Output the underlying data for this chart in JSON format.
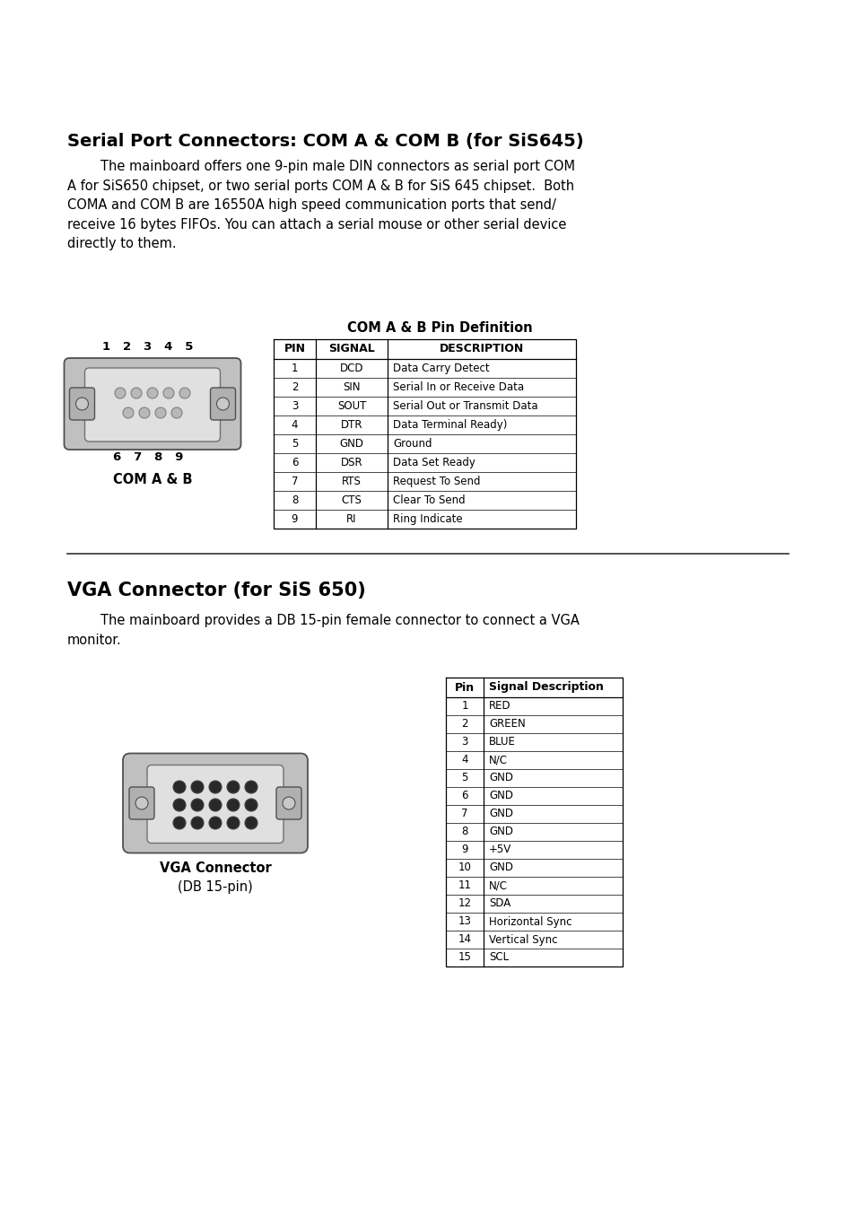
{
  "title1": "Serial Port Connectors: COM A & COM B (for SiS645)",
  "para1": "        The mainboard offers one 9-pin male DIN connectors as serial port COM\nA for SiS650 chipset, or two serial ports COM A & B for SiS 645 chipset.  Both\nCOMA and COM B are 16550A high speed communication ports that send/\nreceive 16 bytes FIFOs. You can attach a serial mouse or other serial device\ndirectly to them.",
  "com_table_title": "COM A & B Pin Definition",
  "com_table_headers": [
    "PIN",
    "SIGNAL",
    "DESCRIPTION"
  ],
  "com_table_rows": [
    [
      "1",
      "DCD",
      "Data Carry Detect"
    ],
    [
      "2",
      "SIN",
      "Serial In or Receive Data"
    ],
    [
      "3",
      "SOUT",
      "Serial Out or Transmit Data"
    ],
    [
      "4",
      "DTR",
      "Data Terminal Ready)"
    ],
    [
      "5",
      "GND",
      "Ground"
    ],
    [
      "6",
      "DSR",
      "Data Set Ready"
    ],
    [
      "7",
      "RTS",
      "Request To Send"
    ],
    [
      "8",
      "CTS",
      "Clear To Send"
    ],
    [
      "9",
      "RI",
      "Ring Indicate"
    ]
  ],
  "com_connector_label": "COM A & B",
  "com_pins_top": "1   2   3   4   5",
  "com_pins_bottom": "6   7   8   9",
  "title2": "VGA Connector (for SiS 650)",
  "para2": "        The mainboard provides a DB 15-pin female connector to connect a VGA\nmonitor.",
  "vga_table_headers": [
    "Pin",
    "Signal Description"
  ],
  "vga_table_rows": [
    [
      "1",
      "RED"
    ],
    [
      "2",
      "GREEN"
    ],
    [
      "3",
      "BLUE"
    ],
    [
      "4",
      "N/C"
    ],
    [
      "5",
      "GND"
    ],
    [
      "6",
      "GND"
    ],
    [
      "7",
      "GND"
    ],
    [
      "8",
      "GND"
    ],
    [
      "9",
      "+5V"
    ],
    [
      "10",
      "GND"
    ],
    [
      "11",
      "N/C"
    ],
    [
      "12",
      "SDA"
    ],
    [
      "13",
      "Horizontal Sync"
    ],
    [
      "14",
      "Vertical Sync"
    ],
    [
      "15",
      "SCL"
    ]
  ],
  "vga_connector_label1": "VGA Connector",
  "vga_connector_label2": "(DB 15-pin)",
  "bg_color": "#ffffff",
  "text_color": "#000000",
  "connector_gray": "#c0c0c0",
  "connector_mid": "#d8d8d8",
  "connector_dark": "#505050",
  "screw_gray": "#b0b0b0"
}
